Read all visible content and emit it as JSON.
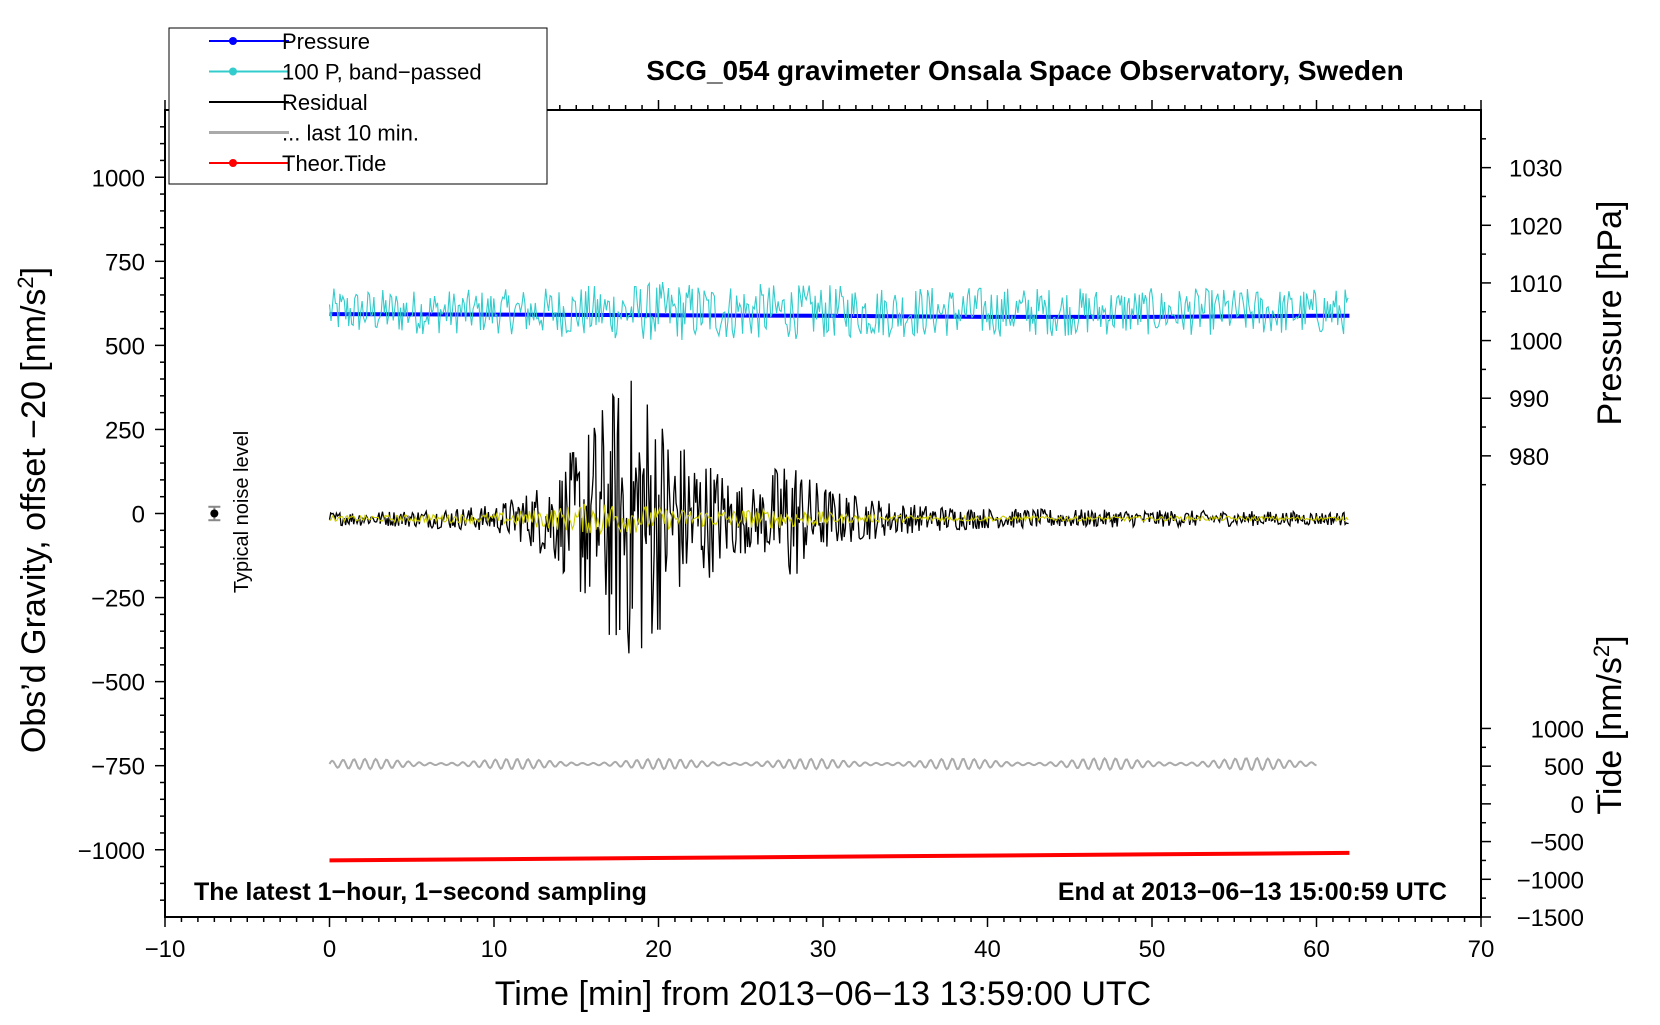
{
  "chart_data": {
    "type": "line",
    "title": "SCG_054 gravimeter Onsala Space Observatory, Sweden",
    "xlabel": "Time [min] from 2013−06−13 13:59:00 UTC",
    "ylabel_left": "Obs’d Gravity, offset −20 [nm/s",
    "ylabel_left_sup": "2",
    "ylabel_left_close": "]",
    "ylabel_right_pressure": "Pressure [hPa]",
    "ylabel_right_tide": "Tide [nm/s",
    "ylabel_right_tide_sup": "2",
    "ylabel_right_tide_close": "]",
    "xlim": [
      -10,
      70
    ],
    "ylim_left": [
      -1200,
      1200
    ],
    "ylim_pressure": [
      900,
      1040
    ],
    "ylim_tide": [
      -1500,
      9200
    ],
    "x_ticks": [
      {
        "v": -10,
        "label": "−10"
      },
      {
        "v": 0,
        "label": "0"
      },
      {
        "v": 10,
        "label": "10"
      },
      {
        "v": 20,
        "label": "20"
      },
      {
        "v": 30,
        "label": "30"
      },
      {
        "v": 40,
        "label": "40"
      },
      {
        "v": 50,
        "label": "50"
      },
      {
        "v": 60,
        "label": "60"
      },
      {
        "v": 70,
        "label": "70"
      }
    ],
    "y_left_ticks": [
      {
        "v": 1000,
        "label": "1000"
      },
      {
        "v": 750,
        "label": "750"
      },
      {
        "v": 500,
        "label": "500"
      },
      {
        "v": 250,
        "label": "250"
      },
      {
        "v": 0,
        "label": "0"
      },
      {
        "v": -250,
        "label": "−250"
      },
      {
        "v": -500,
        "label": "−500"
      },
      {
        "v": -750,
        "label": "−750"
      },
      {
        "v": -1000,
        "label": "−1000"
      }
    ],
    "y_pressure_ticks": [
      {
        "v": 1030,
        "label": "1030"
      },
      {
        "v": 1020,
        "label": "1020"
      },
      {
        "v": 1010,
        "label": "1010"
      },
      {
        "v": 1000,
        "label": "1000"
      },
      {
        "v": 990,
        "label": "990"
      },
      {
        "v": 980,
        "label": "980"
      }
    ],
    "y_tide_ticks": [
      {
        "v": 1000,
        "label": "1000"
      },
      {
        "v": 500,
        "label": "500"
      },
      {
        "v": 0,
        "label": "0"
      },
      {
        "v": -500,
        "label": "−500"
      },
      {
        "v": -1000,
        "label": "−1000"
      },
      {
        "v": -1500,
        "label": "−1500"
      }
    ],
    "legend_position": "top-left",
    "legend": [
      {
        "label": "Pressure",
        "color": "#0000ff",
        "marker": true
      },
      {
        "label": "100 P, band−passed",
        "color": "#33cccc",
        "marker": true
      },
      {
        "label": "Residual",
        "color": "#000000",
        "marker": false
      },
      {
        "label": "... last 10 min.",
        "color": "#aaaaaa",
        "marker": false
      },
      {
        "label": "Theor.Tide",
        "color": "#ff0000",
        "marker": true
      }
    ],
    "annotations": {
      "bottom_left": "The latest 1−hour, 1−second sampling",
      "bottom_right": "End at 2013−06−13 15:00:59 UTC",
      "noise_label": "Typical noise level"
    },
    "noise_marker": {
      "x": -7,
      "y": 0,
      "err": 20
    },
    "series": [
      {
        "name": "Pressure",
        "color": "#0000ff",
        "axis": "pressure",
        "x": [
          0,
          10,
          20,
          30,
          40,
          50,
          60,
          62
        ],
        "y": [
          1004.6,
          1004.5,
          1004.4,
          1004.3,
          1004.1,
          1004.1,
          1004.3,
          1004.3
        ]
      },
      {
        "name": "100 P, band−passed",
        "color": "#33cccc",
        "axis": "left",
        "center": 600,
        "x_range": [
          0,
          62
        ],
        "envelope": [
          [
            0,
            70
          ],
          [
            10,
            65
          ],
          [
            20,
            90
          ],
          [
            30,
            80
          ],
          [
            40,
            75
          ],
          [
            50,
            70
          ],
          [
            62,
            70
          ]
        ]
      },
      {
        "name": "Residual",
        "color": "#000000",
        "axis": "left",
        "center": -15,
        "x_range": [
          0,
          62
        ],
        "envelope": [
          [
            0,
            20
          ],
          [
            5,
            25
          ],
          [
            10,
            40
          ],
          [
            12,
            80
          ],
          [
            14,
            150
          ],
          [
            16,
            300
          ],
          [
            17,
            380
          ],
          [
            18,
            430
          ],
          [
            19,
            440
          ],
          [
            21,
            250
          ],
          [
            23,
            180
          ],
          [
            25,
            110
          ],
          [
            26,
            90
          ],
          [
            27,
            150
          ],
          [
            28,
            220
          ],
          [
            29,
            130
          ],
          [
            31,
            80
          ],
          [
            35,
            45
          ],
          [
            40,
            30
          ],
          [
            50,
            25
          ],
          [
            62,
            20
          ]
        ]
      },
      {
        "name": "Residual (filtered)",
        "color": "#cccc00",
        "axis": "left",
        "center": -15,
        "x_range": [
          0,
          62
        ],
        "envelope": [
          [
            0,
            8
          ],
          [
            10,
            15
          ],
          [
            14,
            35
          ],
          [
            17,
            55
          ],
          [
            19,
            40
          ],
          [
            22,
            25
          ],
          [
            28,
            30
          ],
          [
            32,
            12
          ],
          [
            40,
            8
          ],
          [
            62,
            6
          ]
        ]
      },
      {
        "name": "... last 10 min.",
        "color": "#aaaaaa",
        "axis": "left",
        "center": -745,
        "x_range": [
          0,
          60
        ],
        "envelope": [
          [
            0,
            15
          ],
          [
            30,
            15
          ],
          [
            60,
            18
          ]
        ]
      },
      {
        "name": "Theor.Tide",
        "color": "#ff0000",
        "axis": "tide",
        "x": [
          0,
          62
        ],
        "y": [
          -750,
          -650
        ]
      }
    ]
  }
}
